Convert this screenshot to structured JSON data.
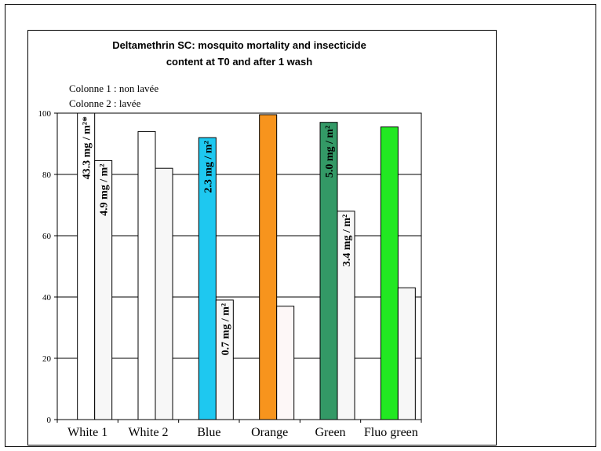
{
  "chart_data": {
    "type": "bar",
    "title": [
      "Deltamethrin SC: mosquito mortality and insecticide",
      "content at T0 and after 1 wash"
    ],
    "categories": [
      "White 1",
      "White 2",
      "Blue",
      "Orange",
      "Green",
      "Fluo green"
    ],
    "series": [
      {
        "name": "Colonne 1 :  non lavée",
        "colors": [
          "#ffffff",
          "#ffffff",
          "#1ec8f0",
          "#f7941d",
          "#339966",
          "#22e822"
        ],
        "values": [
          100,
          94,
          92,
          99.5,
          97,
          95.5
        ],
        "bar_labels": [
          "43.3 mg / m²*",
          null,
          "2.3 mg / m²",
          null,
          "5.0 mg / m²",
          null
        ]
      },
      {
        "name": "Colonne 2 :  lavée",
        "colors": [
          "#f7f7f7",
          "#f7f7f7",
          "#f7f7f7",
          "#fdf7f7",
          "#f7f7f7",
          "#f7f7f7"
        ],
        "values": [
          84.5,
          82,
          39,
          37,
          68,
          43
        ],
        "bar_labels": [
          "4.9 mg / m²",
          null,
          "0.7 mg / m²",
          null,
          "3.4 mg / m²",
          null
        ]
      }
    ],
    "ylim": [
      0,
      100
    ],
    "yticks": [
      0,
      20,
      40,
      60,
      80,
      100
    ],
    "grid": true
  }
}
